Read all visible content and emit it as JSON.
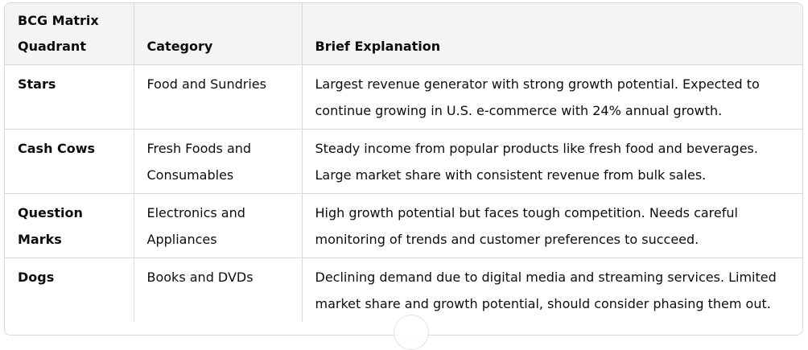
{
  "table": {
    "headers": [
      "BCG Matrix Quadrant",
      "Category",
      "Brief Explanation"
    ],
    "rows": [
      {
        "quadrant": "Stars",
        "category": "Food and Sundries",
        "explanation": "Largest revenue generator with strong growth potential. Expected to continue growing in U.S. e-commerce with 24% annual growth."
      },
      {
        "quadrant": "Cash Cows",
        "category": "Fresh Foods and Consumables",
        "explanation": "Steady income from popular products like fresh food and beverages. Large market share with consistent revenue from bulk sales."
      },
      {
        "quadrant": "Question Marks",
        "category": "Electronics and Appliances",
        "explanation": "High growth potential but faces tough competition. Needs careful monitoring of trends and customer preferences to succeed."
      },
      {
        "quadrant": "Dogs",
        "category": "Books and DVDs",
        "explanation": "Declining demand due to digital media and streaming services. Limited market share and growth potential, should consider phasing them out."
      }
    ]
  },
  "icons": {
    "scroll_button": "scroll-down-icon"
  }
}
